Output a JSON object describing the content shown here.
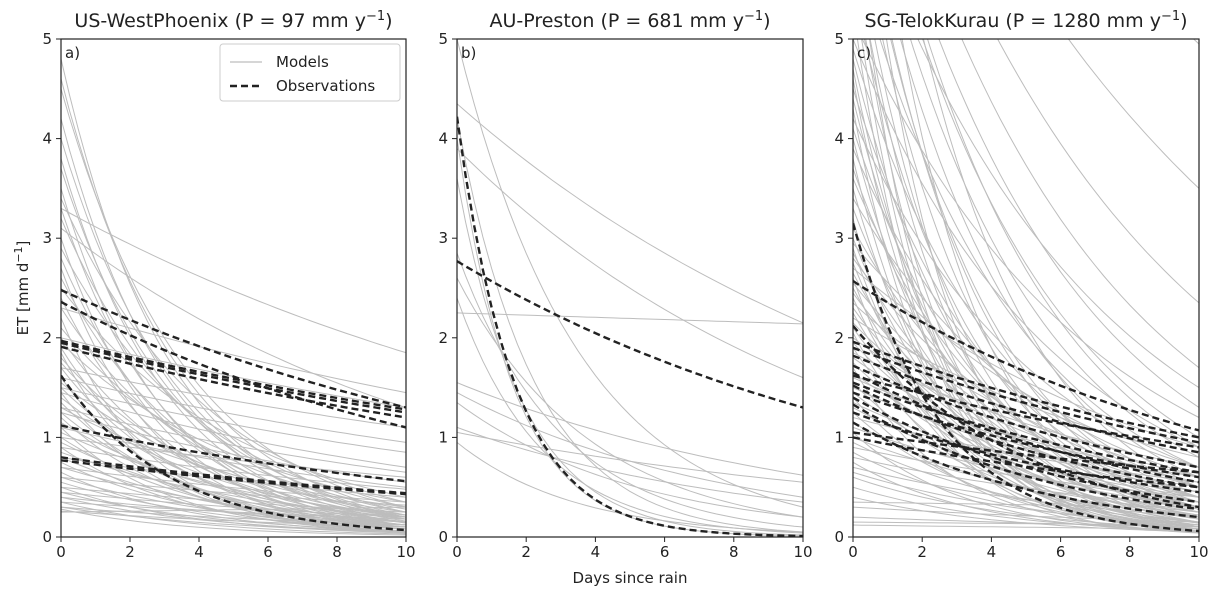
{
  "figure": {
    "xlabel": "Days since rain",
    "ylabel": "ET [mm d",
    "ylabel_sup": "−1",
    "ylabel_end": "]"
  },
  "legend": {
    "models": "Models",
    "observations": "Observations"
  },
  "colors": {
    "models": "#bdbdbd",
    "observations": "#222222"
  },
  "chart_data": [
    {
      "type": "line",
      "panel": "a)",
      "title": "US-WestPhoenix (P = 97 mm y",
      "title_sup": "−1",
      "title_end": ")",
      "xlim": [
        0,
        10
      ],
      "ylim": [
        0,
        5
      ],
      "xticks": [
        0,
        2,
        4,
        6,
        8,
        10
      ],
      "yticks": [
        0,
        1,
        2,
        3,
        4,
        5
      ],
      "legend_position": "top-right",
      "models": [
        [
          4.8,
          0.2
        ],
        [
          4.6,
          0.25
        ],
        [
          4.5,
          0.3
        ],
        [
          4.2,
          0.18
        ],
        [
          4.0,
          0.22
        ],
        [
          3.8,
          0.16
        ],
        [
          3.7,
          0.2
        ],
        [
          3.5,
          0.12
        ],
        [
          3.4,
          0.35
        ],
        [
          3.3,
          0.14
        ],
        [
          3.2,
          0.25
        ],
        [
          3.0,
          0.1
        ],
        [
          2.9,
          0.3
        ],
        [
          2.8,
          0.15
        ],
        [
          2.7,
          0.08
        ],
        [
          2.6,
          0.2
        ],
        [
          2.5,
          0.4
        ],
        [
          2.4,
          0.12
        ],
        [
          2.3,
          0.22
        ],
        [
          2.2,
          0.05
        ],
        [
          2.1,
          0.28
        ],
        [
          2.0,
          0.15
        ],
        [
          1.95,
          0.35
        ],
        [
          1.9,
          0.1
        ],
        [
          1.85,
          0.05
        ],
        [
          1.8,
          0.2
        ],
        [
          1.75,
          0.18
        ],
        [
          1.7,
          0.12
        ],
        [
          1.6,
          0.08
        ],
        [
          1.55,
          0.25
        ],
        [
          1.5,
          0.15
        ],
        [
          1.45,
          0.06
        ],
        [
          1.4,
          0.2
        ],
        [
          1.35,
          0.1
        ],
        [
          1.3,
          0.3
        ],
        [
          1.25,
          0.12
        ],
        [
          1.2,
          0.08
        ],
        [
          1.15,
          0.18
        ],
        [
          1.1,
          0.05
        ],
        [
          1.05,
          0.22
        ],
        [
          1.0,
          0.1
        ],
        [
          0.95,
          0.15
        ],
        [
          0.9,
          0.06
        ],
        [
          0.85,
          0.2
        ],
        [
          0.8,
          0.12
        ],
        [
          0.75,
          0.08
        ],
        [
          0.7,
          0.15
        ],
        [
          0.65,
          0.05
        ],
        [
          0.6,
          0.1
        ],
        [
          0.55,
          0.08
        ],
        [
          0.5,
          0.04
        ],
        [
          0.45,
          0.06
        ],
        [
          0.4,
          0.05
        ],
        [
          0.35,
          0.03
        ],
        [
          0.3,
          0.05
        ],
        [
          0.28,
          0.02
        ],
        [
          3.3,
          1.85
        ],
        [
          3.1,
          1.3
        ],
        [
          2.3,
          1.45
        ],
        [
          2.0,
          1.3
        ],
        [
          1.7,
          1.1
        ],
        [
          1.6,
          0.95
        ],
        [
          1.5,
          0.85
        ],
        [
          1.45,
          0.7
        ],
        [
          1.3,
          0.65
        ],
        [
          1.25,
          0.55
        ],
        [
          1.1,
          0.5
        ],
        [
          1.0,
          0.6
        ],
        [
          0.9,
          0.48
        ],
        [
          0.8,
          0.4
        ],
        [
          0.7,
          0.35
        ],
        [
          0.6,
          0.32
        ],
        [
          0.5,
          0.25
        ],
        [
          0.45,
          0.2
        ],
        [
          0.4,
          0.15
        ],
        [
          0.35,
          0.18
        ],
        [
          0.3,
          0.12
        ],
        [
          0.26,
          0.1
        ],
        [
          0.25,
          0.3
        ]
      ],
      "observations": [
        [
          2.48,
          1.3
        ],
        [
          2.36,
          1.1
        ],
        [
          1.97,
          1.28
        ],
        [
          1.95,
          1.25
        ],
        [
          1.91,
          1.2
        ],
        [
          1.62,
          0.07
        ],
        [
          1.12,
          0.56
        ],
        [
          0.8,
          0.44
        ],
        [
          0.77,
          0.43
        ]
      ]
    },
    {
      "type": "line",
      "panel": "b)",
      "title": "AU-Preston (P = 681 mm y",
      "title_sup": "−1",
      "title_end": ")",
      "xlim": [
        0,
        10
      ],
      "ylim": [
        0,
        5
      ],
      "xticks": [
        0,
        2,
        4,
        6,
        8,
        10
      ],
      "yticks": [
        0,
        1,
        2,
        3,
        4,
        5
      ],
      "models": [
        [
          5.0,
          0.3
        ],
        [
          4.35,
          2.15
        ],
        [
          4.2,
          0.05
        ],
        [
          4.0,
          0.01
        ],
        [
          3.9,
          1.6
        ],
        [
          3.6,
          0.02
        ],
        [
          2.85,
          0.1
        ],
        [
          2.4,
          0.04
        ],
        [
          2.25,
          2.14
        ],
        [
          1.55,
          0.62
        ],
        [
          1.45,
          0.4
        ],
        [
          1.35,
          0.2
        ],
        [
          1.1,
          0.35
        ],
        [
          1.05,
          0.55
        ],
        [
          0.95,
          0.05
        ],
        [
          2.6,
          0.2
        ]
      ],
      "observations": [
        [
          2.77,
          1.3
        ],
        [
          4.22,
          0.01
        ]
      ]
    },
    {
      "type": "line",
      "panel": "c)",
      "title": "SG-TelokKurau (P = 1280 mm y",
      "title_sup": "−1",
      "title_end": ")",
      "xlim": [
        0,
        10
      ],
      "ylim": [
        0,
        5
      ],
      "xticks": [
        0,
        2,
        4,
        6,
        8,
        10
      ],
      "yticks": [
        0,
        1,
        2,
        3,
        4,
        5
      ],
      "models": [
        [
          9.5,
          4.95
        ],
        [
          9.0,
          3.5
        ],
        [
          8.6,
          2.35
        ],
        [
          8.2,
          1.7
        ],
        [
          7.8,
          1.3
        ],
        [
          7.5,
          1.0
        ],
        [
          7.2,
          0.8
        ],
        [
          7.0,
          0.6
        ],
        [
          6.8,
          0.4
        ],
        [
          6.5,
          0.3
        ],
        [
          6.2,
          0.2
        ],
        [
          6.0,
          0.15
        ],
        [
          5.8,
          0.1
        ],
        [
          5.6,
          0.06
        ],
        [
          5.5,
          0.3
        ],
        [
          5.3,
          0.05
        ],
        [
          5.2,
          1.2
        ],
        [
          5.0,
          0.9
        ],
        [
          4.9,
          0.5
        ],
        [
          4.8,
          0.25
        ],
        [
          4.7,
          0.12
        ],
        [
          4.6,
          0.08
        ],
        [
          4.5,
          0.4
        ],
        [
          4.4,
          0.18
        ],
        [
          4.3,
          0.06
        ],
        [
          4.2,
          0.7
        ],
        [
          4.1,
          0.3
        ],
        [
          4.0,
          0.14
        ],
        [
          3.9,
          0.5
        ],
        [
          3.8,
          0.08
        ],
        [
          3.7,
          0.25
        ],
        [
          3.6,
          0.35
        ],
        [
          3.5,
          0.1
        ],
        [
          3.4,
          0.6
        ],
        [
          3.3,
          0.2
        ],
        [
          3.2,
          0.04
        ],
        [
          3.1,
          0.4
        ],
        [
          3.0,
          0.15
        ],
        [
          2.95,
          0.7
        ],
        [
          2.9,
          0.08
        ],
        [
          2.85,
          0.3
        ],
        [
          2.8,
          0.5
        ],
        [
          2.75,
          0.12
        ],
        [
          2.7,
          0.9
        ],
        [
          2.65,
          0.22
        ],
        [
          2.6,
          0.06
        ],
        [
          2.55,
          0.45
        ],
        [
          2.5,
          0.18
        ],
        [
          2.45,
          0.35
        ],
        [
          2.4,
          0.1
        ],
        [
          2.35,
          0.6
        ],
        [
          2.3,
          0.28
        ],
        [
          2.25,
          0.14
        ],
        [
          2.2,
          0.8
        ],
        [
          2.15,
          0.4
        ],
        [
          2.1,
          0.2
        ],
        [
          2.05,
          0.08
        ],
        [
          2.0,
          0.55
        ],
        [
          1.95,
          0.3
        ],
        [
          1.9,
          0.12
        ],
        [
          1.85,
          0.7
        ],
        [
          1.8,
          0.45
        ],
        [
          1.75,
          0.25
        ],
        [
          1.7,
          0.05
        ],
        [
          1.65,
          0.35
        ],
        [
          1.6,
          0.6
        ],
        [
          1.55,
          0.15
        ],
        [
          1.5,
          0.5
        ],
        [
          1.45,
          0.22
        ],
        [
          1.4,
          0.08
        ],
        [
          1.35,
          0.4
        ],
        [
          1.3,
          0.3
        ],
        [
          1.25,
          0.1
        ],
        [
          1.2,
          0.55
        ],
        [
          1.15,
          0.2
        ],
        [
          1.1,
          0.35
        ],
        [
          1.05,
          0.05
        ],
        [
          1.0,
          0.25
        ],
        [
          0.95,
          0.15
        ],
        [
          0.9,
          0.4
        ],
        [
          0.85,
          0.1
        ],
        [
          0.8,
          0.3
        ],
        [
          0.75,
          0.05
        ],
        [
          0.7,
          0.2
        ],
        [
          0.65,
          0.12
        ],
        [
          0.6,
          0.08
        ],
        [
          0.5,
          0.06
        ],
        [
          0.4,
          0.05
        ],
        [
          0.35,
          0.3
        ],
        [
          0.3,
          0.15
        ],
        [
          0.2,
          0.1
        ],
        [
          0.15,
          0.12
        ],
        [
          0.12,
          0.08
        ],
        [
          9.0,
          0.5
        ],
        [
          8.5,
          0.2
        ],
        [
          8.0,
          0.9
        ],
        [
          7.6,
          0.1
        ],
        [
          7.0,
          0.35
        ],
        [
          6.6,
          1.5
        ],
        [
          6.3,
          0.05
        ],
        [
          5.9,
          0.7
        ]
      ],
      "observations": [
        [
          3.15,
          0.06
        ],
        [
          2.57,
          1.07
        ],
        [
          2.12,
          0.3
        ],
        [
          1.96,
          1.0
        ],
        [
          1.9,
          0.95
        ],
        [
          1.82,
          0.85
        ],
        [
          1.72,
          0.7
        ],
        [
          1.65,
          0.55
        ],
        [
          1.62,
          0.9
        ],
        [
          1.55,
          0.65
        ],
        [
          1.52,
          0.5
        ],
        [
          1.45,
          0.6
        ],
        [
          1.4,
          0.35
        ],
        [
          1.33,
          0.28
        ],
        [
          1.25,
          0.45
        ],
        [
          1.15,
          0.2
        ],
        [
          1.05,
          0.65
        ],
        [
          1.0,
          0.5
        ]
      ]
    }
  ]
}
